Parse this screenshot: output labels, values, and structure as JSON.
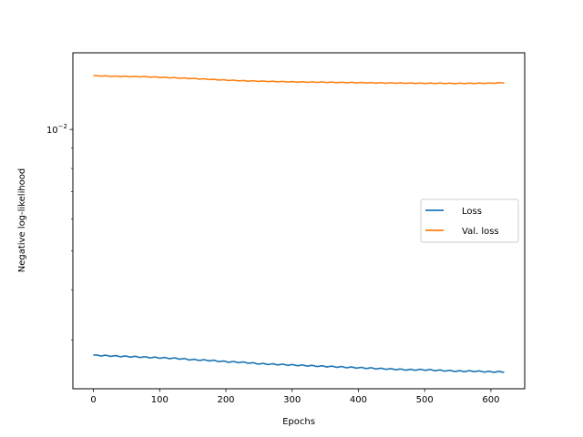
{
  "chart_data": {
    "type": "line",
    "xlabel": "Epochs",
    "ylabel": "Negative log-likelihood",
    "yscale": "log",
    "xlim": [
      -31,
      651
    ],
    "ylim": [
      0.00227,
      0.0155
    ],
    "x_ticks": [
      0,
      100,
      200,
      300,
      400,
      500,
      600
    ],
    "x_tick_labels": [
      "0",
      "100",
      "200",
      "300",
      "400",
      "500",
      "600"
    ],
    "y_major_ticks": [
      0.01
    ],
    "y_major_tick_labels": [
      "10^-2"
    ],
    "y_minor_ticks": [
      0.003,
      0.004,
      0.005,
      0.006,
      0.007,
      0.008,
      0.009
    ],
    "grid": false,
    "legend_position": "center-right",
    "series": [
      {
        "name": "Loss",
        "color": "#1f77b4",
        "x": [
          0,
          25,
          50,
          75,
          100,
          125,
          150,
          175,
          200,
          225,
          250,
          275,
          300,
          325,
          350,
          375,
          400,
          425,
          450,
          475,
          500,
          525,
          550,
          575,
          600,
          620
        ],
        "y": [
          0.00275,
          0.00274,
          0.00273,
          0.00272,
          0.00271,
          0.0027,
          0.00268,
          0.00267,
          0.00265,
          0.00264,
          0.00262,
          0.00261,
          0.0026,
          0.00259,
          0.00258,
          0.00257,
          0.00256,
          0.00255,
          0.00254,
          0.00253,
          0.00253,
          0.00252,
          0.00251,
          0.00251,
          0.0025,
          0.0025
        ]
      },
      {
        "name": "Val. loss",
        "color": "#ff7f0e",
        "x": [
          0,
          25,
          50,
          75,
          100,
          125,
          150,
          175,
          200,
          225,
          250,
          275,
          300,
          325,
          350,
          375,
          400,
          425,
          450,
          475,
          500,
          525,
          550,
          575,
          600,
          620
        ],
        "y": [
          0.0136,
          0.01356,
          0.01354,
          0.01352,
          0.01348,
          0.01343,
          0.01338,
          0.01332,
          0.01326,
          0.01321,
          0.01318,
          0.01315,
          0.01313,
          0.01311,
          0.0131,
          0.01308,
          0.01307,
          0.01305,
          0.01304,
          0.01303,
          0.01302,
          0.01302,
          0.01301,
          0.01302,
          0.01303,
          0.01306
        ]
      }
    ]
  }
}
